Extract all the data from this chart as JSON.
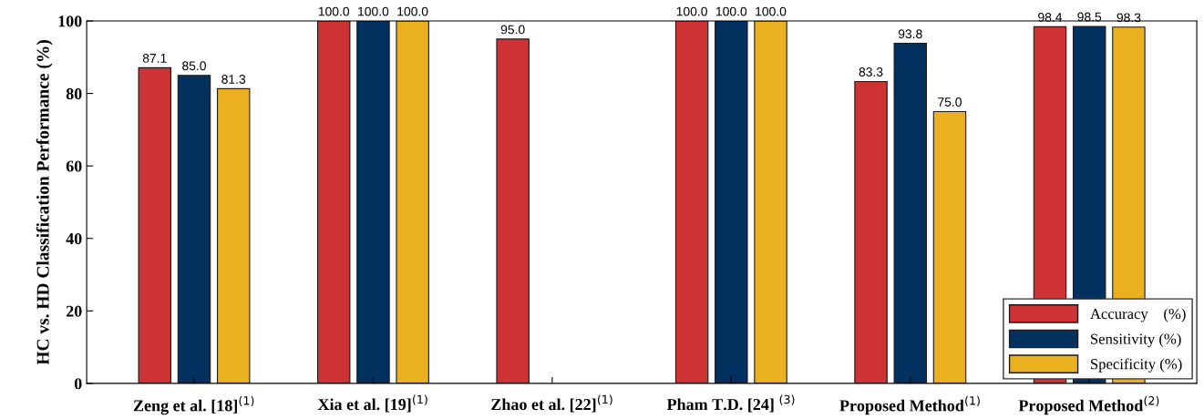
{
  "chart_data": {
    "type": "bar",
    "ylabel": "HC vs. HD Classification Performance (%)",
    "categories": [
      "Zeng et al. [18]$^{(1)}$",
      "Xia et al. [19]$^{(1)}$",
      "Zhao et al. [22]$^{(1)}$",
      "Pham T.D. [24] $^{(3)}$",
      "Proposed Method$^{(1)}$",
      "Proposed Method$^{(2)}$"
    ],
    "series": [
      {
        "name": "Accuracy    (%)",
        "color": "#cd3335",
        "values": [
          87.1,
          100.0,
          95.0,
          100.0,
          83.3,
          98.4
        ],
        "value_labels": [
          "87.1",
          "100.0",
          "95.0",
          "100.0",
          "83.3",
          "98.4"
        ]
      },
      {
        "name": "Sensitivity (%)",
        "color": "#02305f",
        "values": [
          85.0,
          100.0,
          null,
          100.0,
          93.8,
          98.5
        ],
        "value_labels": [
          "85.0",
          "100.0",
          null,
          "100.0",
          "93.8",
          "98.5"
        ]
      },
      {
        "name": "Specificity (%)",
        "color": "#ebb020",
        "values": [
          81.3,
          100.0,
          null,
          100.0,
          75.0,
          98.3
        ],
        "value_labels": [
          "81.3",
          "100.0",
          null,
          "100.0",
          "75.0",
          "98.3"
        ]
      }
    ],
    "ylim": [
      0,
      100
    ],
    "yticks": [
      0,
      20,
      40,
      60,
      80,
      100
    ],
    "grid": false,
    "legend": "bottom right"
  }
}
